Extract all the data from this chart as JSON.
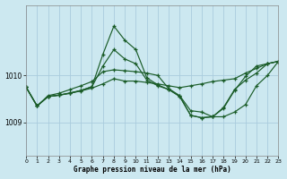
{
  "title": "Graphe pression niveau de la mer (hPa)",
  "bg_color": "#cce8f0",
  "grid_color": "#aaccdd",
  "line_color": "#1a5c28",
  "xlim": [
    0,
    23
  ],
  "ylim": [
    1008.3,
    1011.5
  ],
  "yticks": [
    1009,
    1010
  ],
  "xticks": [
    0,
    1,
    2,
    3,
    4,
    5,
    6,
    7,
    8,
    9,
    10,
    11,
    12,
    13,
    14,
    15,
    16,
    17,
    18,
    19,
    20,
    21,
    22,
    23
  ],
  "series": [
    [
      1009.75,
      1009.35,
      1009.55,
      1009.58,
      1009.62,
      1009.67,
      1009.73,
      1009.82,
      1009.93,
      1009.88,
      1009.88,
      1009.85,
      1009.82,
      1009.78,
      1009.74,
      1009.78,
      1009.82,
      1009.87,
      1009.9,
      1009.93,
      1010.05,
      1010.15,
      1010.25,
      1010.3
    ],
    [
      1009.75,
      1009.35,
      1009.55,
      1009.58,
      1009.62,
      1009.68,
      1009.76,
      1010.2,
      1010.55,
      1010.35,
      1010.25,
      1009.9,
      1009.78,
      1009.7,
      1009.55,
      1009.15,
      1009.1,
      1009.12,
      1009.32,
      1009.7,
      1009.9,
      1010.05,
      1010.25,
      1010.3
    ],
    [
      1009.75,
      1009.35,
      1009.55,
      1009.58,
      1009.63,
      1009.68,
      1009.76,
      1010.45,
      1011.05,
      1010.75,
      1010.55,
      1009.95,
      1009.8,
      1009.7,
      1009.56,
      1009.15,
      1009.1,
      1009.12,
      1009.3,
      1009.68,
      1009.98,
      1010.2,
      1010.25,
      1010.3
    ],
    [
      1009.75,
      1009.35,
      1009.57,
      1009.62,
      1009.7,
      1009.78,
      1009.87,
      1010.08,
      1010.12,
      1010.1,
      1010.08,
      1010.05,
      1010.0,
      1009.72,
      1009.57,
      1009.25,
      1009.22,
      1009.12,
      1009.12,
      1009.22,
      1009.38,
      1009.78,
      1010.0,
      1010.3
    ]
  ]
}
